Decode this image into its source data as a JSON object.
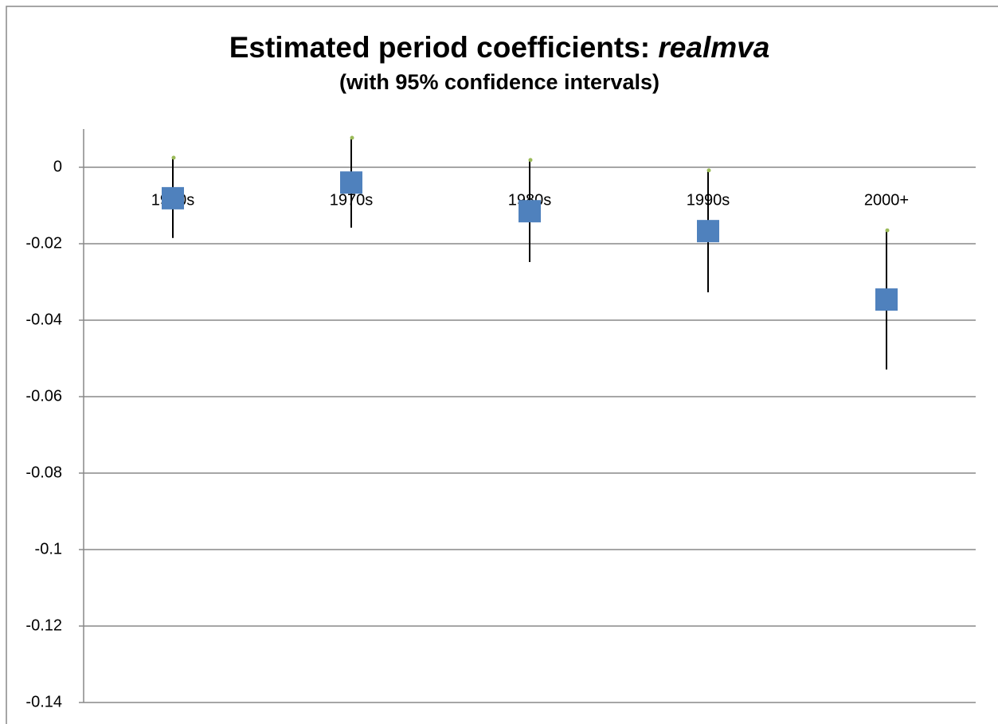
{
  "chart_data": {
    "type": "errorbar",
    "title": "Estimated period coefficients:",
    "title_emphasis": "realmva",
    "subtitle": "(with 95% confidence intervals)",
    "categories": [
      "1960s",
      "1970s",
      "1980s",
      "1990s",
      "2000+"
    ],
    "series": [
      {
        "color": "#4f81bd",
        "whisker_color": "#000000",
        "cap_color": "#9bbb59",
        "values": [
          -0.0081,
          -0.004,
          -0.0115,
          -0.0167,
          -0.0346
        ],
        "high": [
          0.0025,
          0.0077,
          0.0019,
          -0.0008,
          -0.0165
        ],
        "low": [
          -0.0185,
          -0.0158,
          -0.0248,
          -0.0327,
          -0.0529
        ]
      }
    ],
    "ylim": [
      -0.14,
      0.01
    ],
    "yticks": [
      0,
      -0.02,
      -0.04,
      -0.06,
      -0.08,
      -0.1,
      -0.12,
      -0.14
    ],
    "grid": true
  }
}
